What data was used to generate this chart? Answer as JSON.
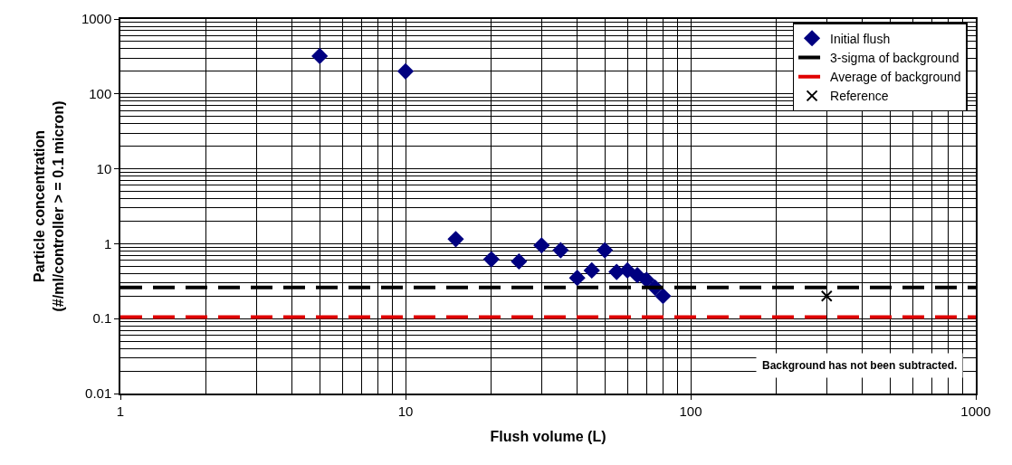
{
  "chart_data": {
    "type": "scatter",
    "xlabel": "Flush volume (L)",
    "ylabel": "Particle concentration\n(#/ml/controller > = 0.1 micron)",
    "log": "xy",
    "xlim": [
      1,
      1000
    ],
    "xticks": [
      1,
      10,
      100,
      1000
    ],
    "ylim": [
      0.01,
      1000
    ],
    "yticks": [
      0.01,
      0.1,
      1,
      10,
      100,
      1000
    ],
    "grid": true,
    "legend": "top right",
    "series": [
      {
        "name": "Initial flush",
        "color": "#000080",
        "marker": "diamond",
        "x": [
          5,
          10,
          15,
          20,
          25,
          30,
          35,
          40,
          45,
          50,
          55,
          60,
          65,
          70,
          75,
          80
        ],
        "values": [
          320,
          200,
          1.15,
          0.62,
          0.58,
          0.95,
          0.82,
          0.35,
          0.44,
          0.82,
          0.42,
          0.44,
          0.38,
          0.33,
          0.26,
          0.2
        ]
      },
      {
        "name": "Reference",
        "color": "#000000",
        "marker": "cross",
        "x": [
          300
        ],
        "values": [
          0.2
        ]
      }
    ],
    "ref_lines": [
      {
        "axis": "y",
        "value": 0.26,
        "label": "3-sigma of background",
        "color": "#000000",
        "line_style": "dashed"
      },
      {
        "axis": "y",
        "value": 0.105,
        "label": "Average of background",
        "color": "#e00000",
        "line_style": "dashed"
      }
    ],
    "annotations": [
      "Background has not been subtracted."
    ]
  }
}
